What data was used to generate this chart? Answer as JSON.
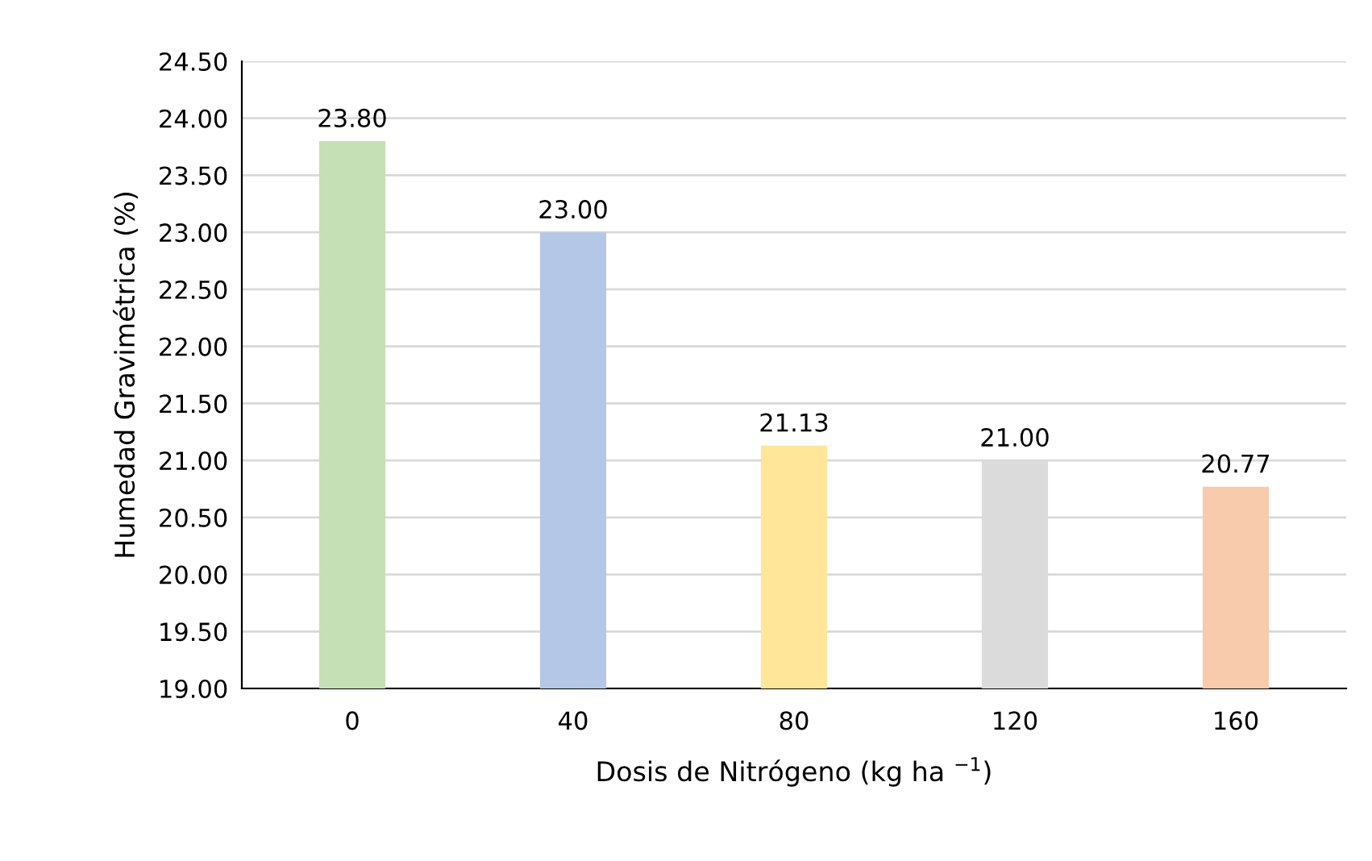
{
  "chart_data": {
    "type": "bar",
    "xlabel": "Dosis de Nitrógeno (kg ha $^{−1}$)",
    "ylabel": "Humedad Gravimétrica (%)",
    "categories": [
      "0",
      "40",
      "80",
      "120",
      "160"
    ],
    "values": [
      23.8,
      23.0,
      21.13,
      21.0,
      20.77
    ],
    "value_labels": [
      "23.80",
      "23.00",
      "21.13",
      "21.00",
      "20.77"
    ],
    "colors": [
      "#c5e0b4",
      "#b4c7e7",
      "#ffe699",
      "#dbdbdb",
      "#f8cbad"
    ],
    "ylim": [
      19,
      24.5
    ],
    "yticks": [
      {
        "value": 19,
        "label": "19.00"
      },
      {
        "value": 19.5,
        "label": "19.50"
      },
      {
        "value": 20,
        "label": "20.00"
      },
      {
        "value": 20.5,
        "label": "20.50"
      },
      {
        "value": 21,
        "label": "21.00"
      },
      {
        "value": 21.5,
        "label": "21.50"
      },
      {
        "value": 22,
        "label": "22.00"
      },
      {
        "value": 22.5,
        "label": "22.50"
      },
      {
        "value": 23,
        "label": "23.00"
      },
      {
        "value": 23.5,
        "label": "23.50"
      },
      {
        "value": 24,
        "label": "24.00"
      },
      {
        "value": 24.5,
        "label": "24.50"
      }
    ],
    "grid": "y",
    "legend": false
  }
}
